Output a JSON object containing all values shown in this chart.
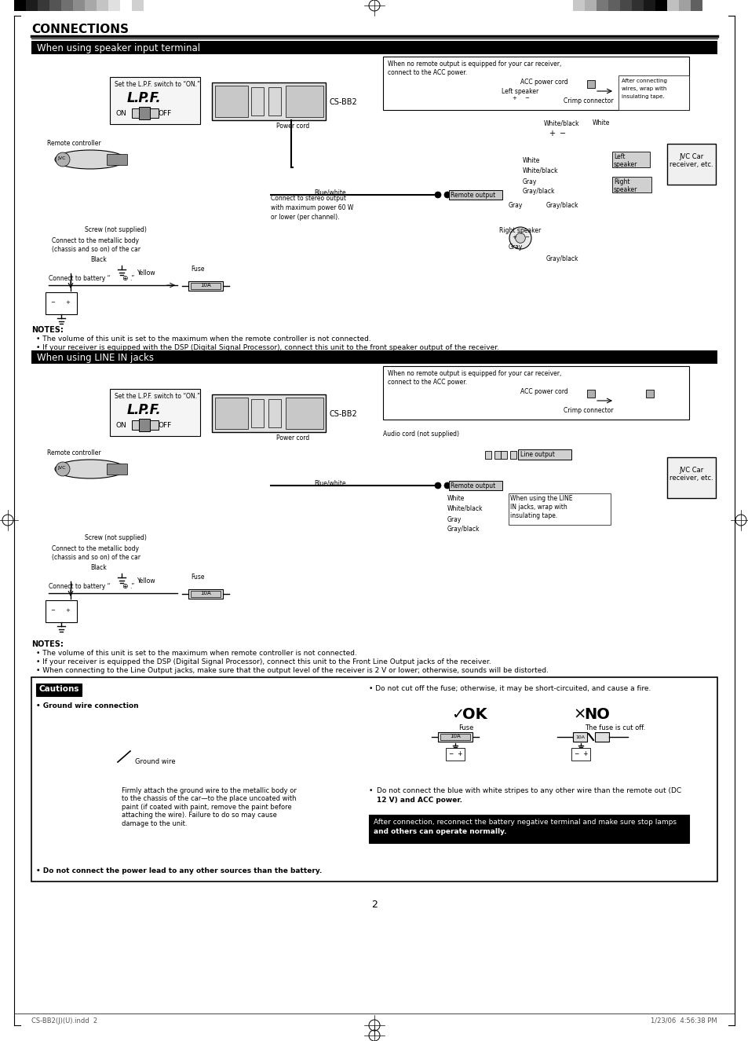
{
  "page_bg": "#ffffff",
  "main_title": "CONNECTIONS",
  "section1_title": "When using speaker input terminal",
  "section2_title": "When using LINE IN jacks",
  "page_number": "2",
  "footer_left": "CS-BB2(J)(U).indd  2",
  "footer_right": "1/23/06  4:56:38 PM",
  "cautions_title": "Cautions",
  "notes1": [
    "The volume of this unit is set to the maximum when the remote controller is not connected.",
    "If your receiver is equipped with the DSP (Digital Signal Processor), connect this unit to the front speaker output of the receiver."
  ],
  "notes2": [
    "The volume of this unit is set to the maximum when remote controller is not connected.",
    "If your receiver is equipped the DSP (Digital Signal Processor), connect this unit to the Front Line Output jacks of the receiver.",
    "When connecting to the Line Output jacks, make sure that the output level of the receiver is 2 V or lower; otherwise, sounds will be distorted."
  ],
  "caution_text0": "Ground wire connection",
  "caution_text1": "Do not connect the power lead to any other sources than the battery.",
  "caution_text2": "Do not cut off the fuse; otherwise, it may be short-circuited, and cause a fire.",
  "caution_text3": "Do not connect the blue with white stripes to any other wire than the remote out (DC\n12 V) and ACC power.",
  "caution_text4": "After connection, reconnect the battery negative terminal and make sure stop lamps\nand others can operate normally.",
  "caution_text5": "Firmly attach the ground wire to the metallic body or\nto the chassis of the car—to the place uncoated with\npaint (if coated with paint, remove the paint before\nattaching the wire). Failure to do so may cause\ndamage to the unit.",
  "caution_text6": "Ground wire",
  "ok_label": "✓OK",
  "no_label": "×NO",
  "fuse_label": "Fuse",
  "fuse_cut_label": "The fuse is cut off.",
  "colors_left": [
    "#000000",
    "#1c1c1c",
    "#383838",
    "#545454",
    "#707070",
    "#8c8c8c",
    "#a8a8a8",
    "#c4c4c4",
    "#e0e0e0",
    "#ffffff",
    "#d0d0d0"
  ],
  "colors_right": [
    "#c8c8c8",
    "#b0b0b0",
    "#787878",
    "#606060",
    "#484848",
    "#303030",
    "#181818",
    "#000000",
    "#c0c0c0",
    "#a0a0a0",
    "#606060"
  ]
}
